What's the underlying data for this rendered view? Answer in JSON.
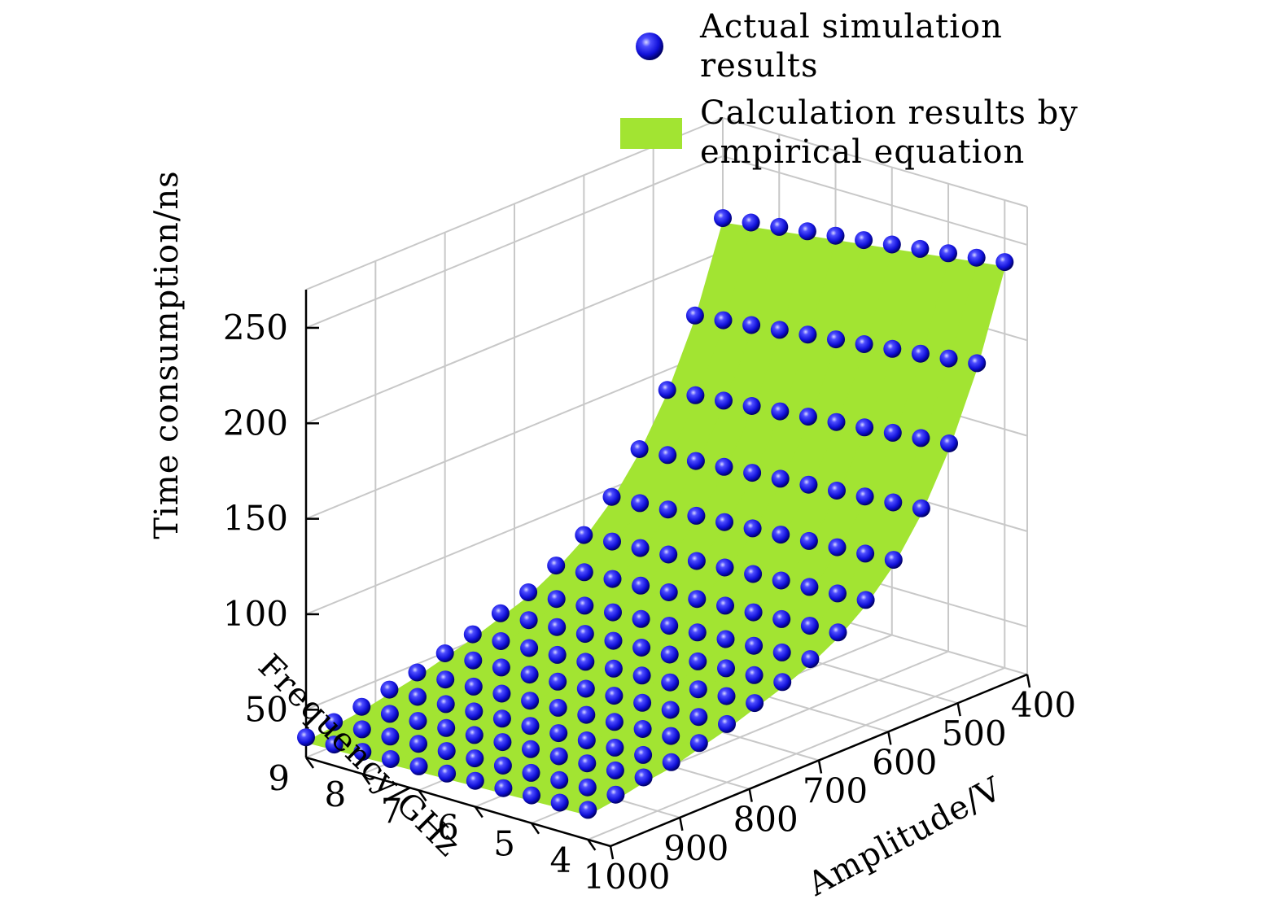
{
  "chart_data": {
    "type": "scatter3d+surface",
    "title": "",
    "x_axis": {
      "label": "Amplitude/V",
      "ticks": [
        400,
        500,
        600,
        700,
        800,
        900,
        1000
      ],
      "range": [
        400,
        1000
      ]
    },
    "y_axis": {
      "label": "Frequency/GHz",
      "ticks": [
        4,
        5,
        6,
        7,
        8,
        9
      ],
      "range": [
        3.6,
        9.0
      ]
    },
    "z_axis": {
      "label": "Time consumption/ns",
      "ticks": [
        50,
        100,
        150,
        200,
        250
      ],
      "range": [
        25,
        270
      ]
    },
    "grid": true,
    "legend": {
      "placement": "top-right",
      "entries": [
        {
          "label_line1": "Actual simulation",
          "label_line2": "results",
          "marker": "sphere",
          "color": "#1a1aff"
        },
        {
          "label_line1": "Calculation results by",
          "label_line2": "empirical equation",
          "marker": "patch",
          "color": "#a2e432"
        }
      ]
    },
    "series": [
      {
        "name": "Actual simulation results",
        "kind": "points",
        "amplitudes": [
          400,
          440,
          480,
          520,
          560,
          600,
          640,
          680,
          720,
          760,
          800,
          840,
          880,
          920,
          960,
          1000
        ],
        "frequencies": [
          4.0,
          4.5,
          5.0,
          5.5,
          6.0,
          6.5,
          7.0,
          7.5,
          8.0,
          8.5,
          9.0
        ],
        "time_ns_at_4GHz": [
          235,
          188,
          152,
          124,
          103,
          88,
          77,
          69,
          63,
          58,
          53,
          49,
          45,
          43,
          40,
          38
        ],
        "time_ns_at_9GHz": [
          215,
          170,
          137,
          112,
          93,
          79,
          69,
          61,
          56,
          51,
          47,
          43,
          40,
          37,
          35,
          33
        ]
      },
      {
        "name": "Calculation results by empirical equation",
        "kind": "surface",
        "color": "#a2e432"
      }
    ]
  }
}
